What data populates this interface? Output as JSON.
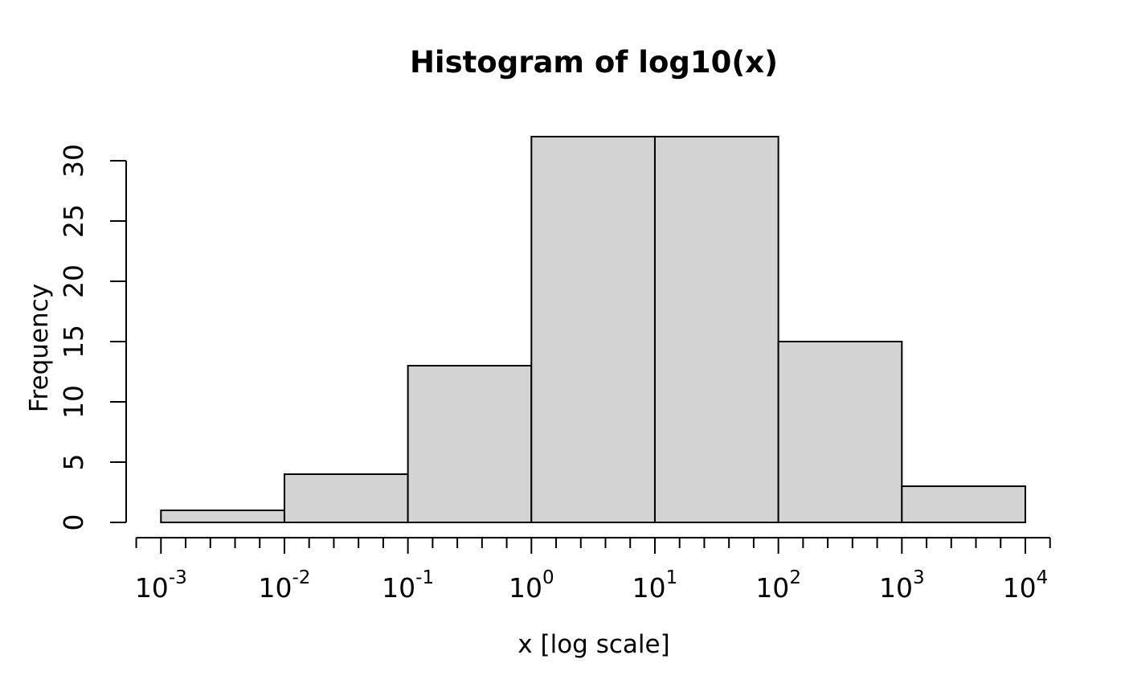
{
  "chart_data": {
    "type": "bar",
    "variant": "histogram",
    "title": "Histogram of log10(x)",
    "xlabel": "x [log scale]",
    "ylabel": "Frequency",
    "x_scale": "log10",
    "grid": false,
    "legend": "none",
    "bins_log10": [
      [
        -3,
        -2
      ],
      [
        -2,
        -1
      ],
      [
        -1,
        0
      ],
      [
        0,
        1
      ],
      [
        1,
        2
      ],
      [
        2,
        3
      ],
      [
        3,
        4
      ]
    ],
    "counts": [
      1,
      4,
      13,
      32,
      32,
      15,
      3
    ],
    "x_major_ticks": [
      {
        "log10": -3,
        "base": "10",
        "exp": "-3"
      },
      {
        "log10": -2,
        "base": "10",
        "exp": "-2"
      },
      {
        "log10": -1,
        "base": "10",
        "exp": "-1"
      },
      {
        "log10": 0,
        "base": "10",
        "exp": "0"
      },
      {
        "log10": 1,
        "base": "10",
        "exp": "1"
      },
      {
        "log10": 2,
        "base": "10",
        "exp": "2"
      },
      {
        "log10": 3,
        "base": "10",
        "exp": "3"
      },
      {
        "log10": 4,
        "base": "10",
        "exp": "4"
      }
    ],
    "x_minor_tick_step_log10": 0.2,
    "x_axis_span_log10": [
      -3.2,
      4.2
    ],
    "y_ticks": [
      0,
      5,
      10,
      15,
      20,
      25,
      30
    ],
    "ylim": [
      0,
      32
    ],
    "colors": {
      "bar_fill": "#d3d3d3",
      "bar_border": "#000000",
      "axis": "#000000",
      "text": "#000000",
      "background": "#ffffff"
    }
  }
}
